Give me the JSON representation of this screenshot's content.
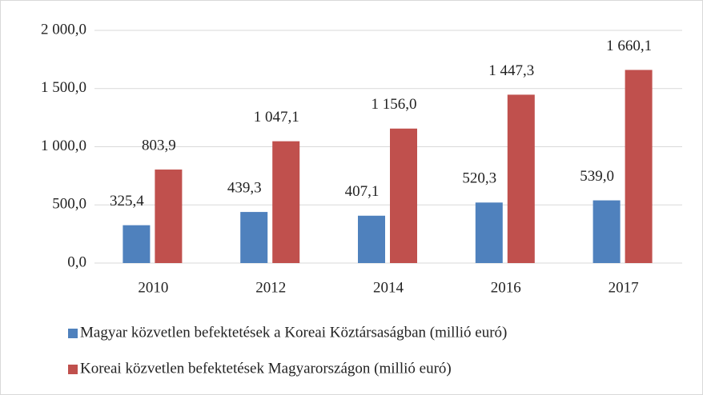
{
  "chart_data": {
    "type": "bar",
    "categories": [
      "2010",
      "2012",
      "2014",
      "2016",
      "2017"
    ],
    "series": [
      {
        "name": "Magyar közvetlen befektetések a Koreai Köztársaságban (millió euró)",
        "color": "#4f81bd",
        "values": [
          325.4,
          439.3,
          407.1,
          520.3,
          539.0
        ],
        "value_labels": [
          "325,4",
          "439,3",
          "407,1",
          "520,3",
          "539,0"
        ]
      },
      {
        "name": "Koreai közvetlen befektetések Magyarországon (millió euró)",
        "color": "#c0504d",
        "values": [
          803.9,
          1047.1,
          1156.0,
          1447.3,
          1660.1
        ],
        "value_labels": [
          "803,9",
          "1 047,1",
          "1 156,0",
          "1 447,3",
          "1 660,1"
        ]
      }
    ],
    "ylim": [
      0,
      2000
    ],
    "yticks": [
      {
        "value": 0,
        "label": "0,0"
      },
      {
        "value": 500,
        "label": "500,0"
      },
      {
        "value": 1000,
        "label": "1 000,0"
      },
      {
        "value": 1500,
        "label": "1 500,0"
      },
      {
        "value": 2000,
        "label": "2 000,0"
      }
    ],
    "grid": true
  }
}
